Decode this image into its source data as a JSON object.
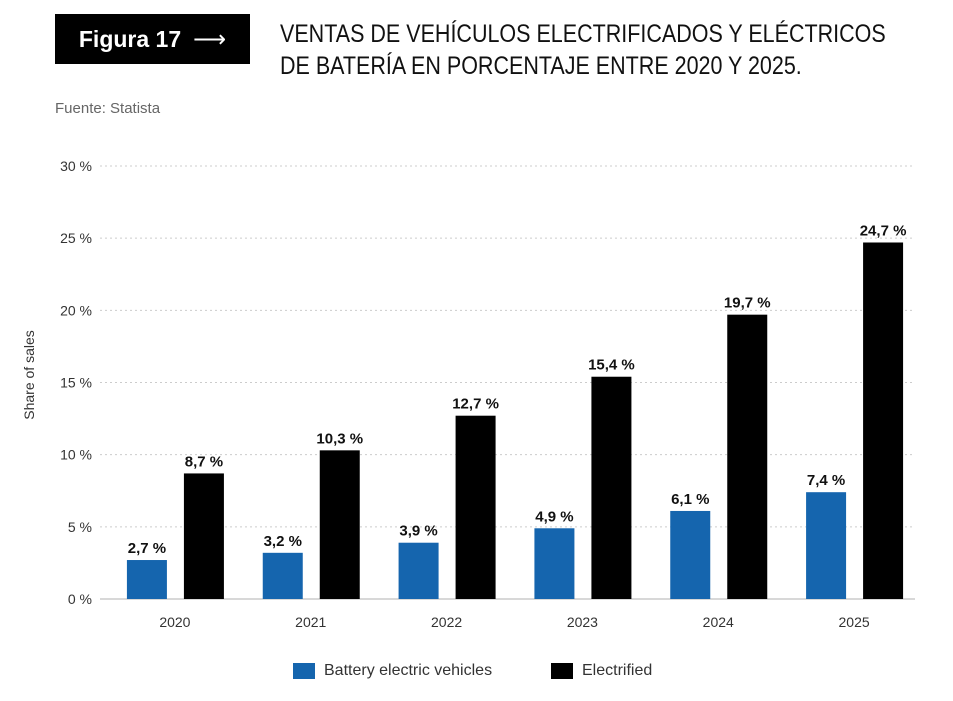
{
  "figure_label": "Figura 17",
  "title": "VENTAS DE VEHÍCULOS ELECTRIFICADOS Y ELÉCTRICOS DE BATERÍA EN PORCENTAJE ENTRE 2020 Y 2025.",
  "source": "Fuente: Statista",
  "chart_data": {
    "type": "bar",
    "title": "",
    "xlabel": "",
    "ylabel": "Share of sales",
    "ylim": [
      0,
      30
    ],
    "yticks": [
      "0 %",
      "5 %",
      "10 %",
      "15 %",
      "20 %",
      "25 %",
      "30 %"
    ],
    "grid": true,
    "legend": "bottom",
    "categories": [
      "2020",
      "2021",
      "2022",
      "2023",
      "2024",
      "2025"
    ],
    "series": [
      {
        "name": "Battery electric vehicles",
        "color": "#1565ae",
        "values": [
          2.7,
          3.2,
          3.9,
          4.9,
          6.1,
          7.4
        ],
        "labels": [
          "2,7 %",
          "3,2 %",
          "3,9 %",
          "4,9 %",
          "6,1 %",
          "7,4 %"
        ]
      },
      {
        "name": "Electrified",
        "color": "#000000",
        "values": [
          8.7,
          10.3,
          12.7,
          15.4,
          19.7,
          24.7
        ],
        "labels": [
          "8,7 %",
          "10,3 %",
          "12,7 %",
          "15,4 %",
          "19,7 %",
          "24,7 %"
        ]
      }
    ]
  }
}
